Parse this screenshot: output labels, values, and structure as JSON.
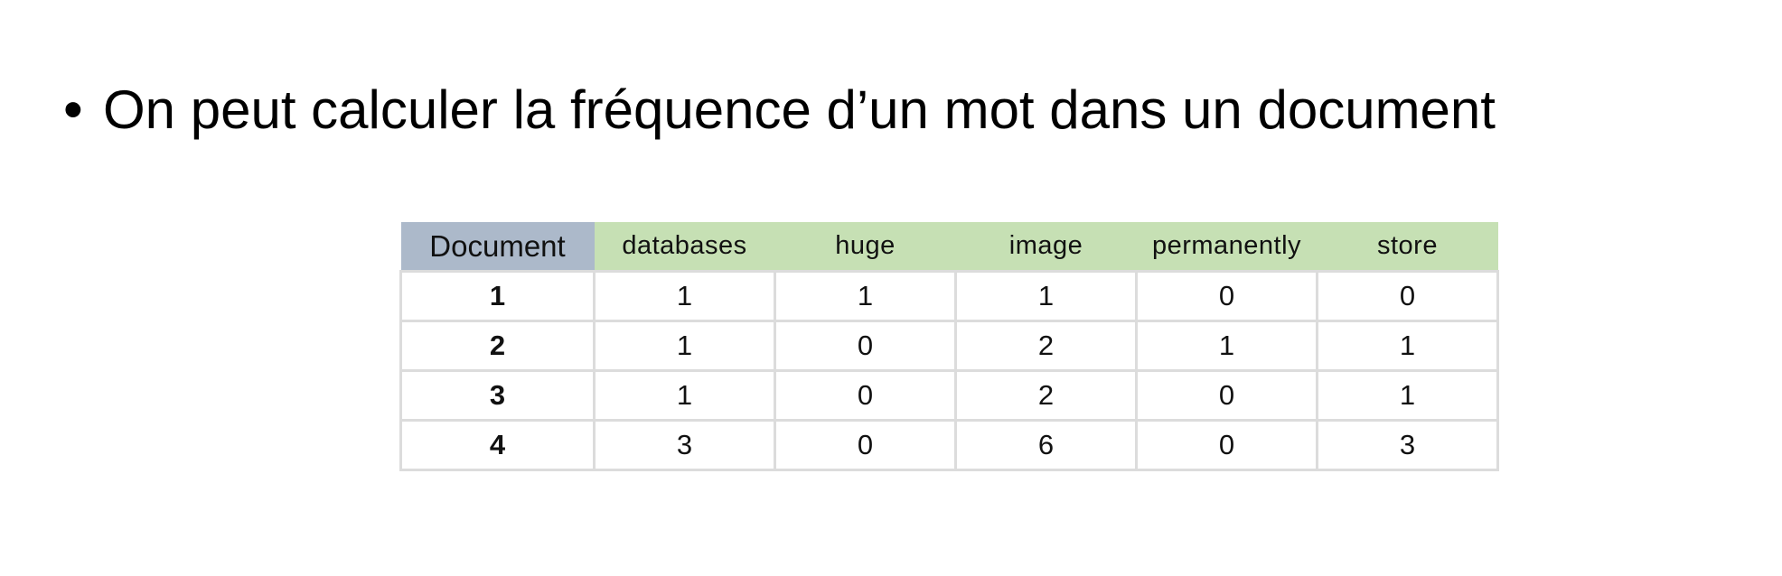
{
  "slide": {
    "bullet_symbol": "•",
    "bullet_text": "On peut calculer la fréquence d’un mot dans un document"
  },
  "table": {
    "columns": [
      "Document",
      "databases",
      "huge",
      "image",
      "permanently",
      "store"
    ],
    "rows": [
      {
        "document": "1",
        "values": [
          "1",
          "1",
          "1",
          "0",
          "0"
        ]
      },
      {
        "document": "2",
        "values": [
          "1",
          "0",
          "2",
          "1",
          "1"
        ]
      },
      {
        "document": "3",
        "values": [
          "1",
          "0",
          "2",
          "0",
          "1"
        ]
      },
      {
        "document": "4",
        "values": [
          "3",
          "0",
          "6",
          "0",
          "3"
        ]
      }
    ]
  },
  "colors": {
    "document_header_bg": "#acb9ca",
    "term_header_bg": "#c6e0b4",
    "grid_line": "#dcdcdc"
  }
}
